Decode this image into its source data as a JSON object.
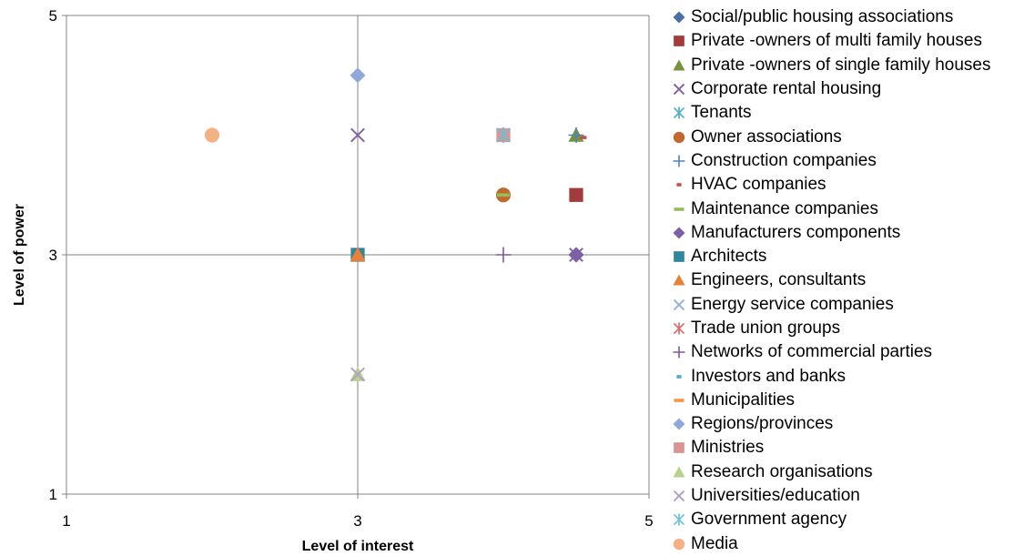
{
  "chart_data": {
    "type": "scatter",
    "xlabel": "Level of interest",
    "ylabel": "Level of power",
    "xlim": [
      1,
      5
    ],
    "ylim": [
      1,
      5
    ],
    "xticks": [
      "1",
      "3",
      "5"
    ],
    "yticks": [
      "1",
      "3",
      "5"
    ],
    "grid": true,
    "legend_position": "right",
    "series": [
      {
        "name": "Social/public housing associations",
        "marker": "diamond",
        "color": "#4a6fa5",
        "points": [
          [
            4.5,
            3
          ]
        ]
      },
      {
        "name": "Private -owners of multi family houses",
        "marker": "square",
        "color": "#a23b3b",
        "points": [
          [
            4.5,
            3.5
          ]
        ]
      },
      {
        "name": "Private -owners of single family houses",
        "marker": "triangle",
        "color": "#76923c",
        "points": [
          [
            4.5,
            4
          ]
        ]
      },
      {
        "name": "Corporate rental housing",
        "marker": "x",
        "color": "#8064a2",
        "points": [
          [
            3,
            4
          ],
          [
            4.5,
            3
          ]
        ]
      },
      {
        "name": "Tenants",
        "marker": "star",
        "color": "#4bacc6",
        "points": [
          [
            4,
            4
          ]
        ]
      },
      {
        "name": "Owner associations",
        "marker": "circle",
        "color": "#c0682d",
        "points": [
          [
            4,
            3.5
          ]
        ]
      },
      {
        "name": "Construction companies",
        "marker": "plus",
        "color": "#4f81bd",
        "points": [
          [
            4.5,
            4
          ]
        ]
      },
      {
        "name": "HVAC companies",
        "marker": "dash",
        "color": "#c0504d",
        "points": [
          [
            4.55,
            3.98
          ]
        ]
      },
      {
        "name": "Maintenance companies",
        "marker": "longdash",
        "color": "#9bbb59",
        "points": [
          [
            4,
            3.5
          ]
        ]
      },
      {
        "name": "Manufacturers components",
        "marker": "diamond",
        "color": "#7e5fa3",
        "points": [
          [
            4.5,
            3
          ]
        ]
      },
      {
        "name": "Architects",
        "marker": "square",
        "color": "#31869b",
        "points": [
          [
            3,
            3
          ]
        ]
      },
      {
        "name": "Engineers, consultants",
        "marker": "triangle",
        "color": "#e8803a",
        "points": [
          [
            3,
            3
          ]
        ]
      },
      {
        "name": "Energy service companies",
        "marker": "x",
        "color": "#95b3d7",
        "points": [
          [
            4,
            4
          ]
        ]
      },
      {
        "name": "Trade union groups",
        "marker": "star",
        "color": "#e06666",
        "points": [
          [
            4,
            4
          ]
        ]
      },
      {
        "name": "Networks of commercial parties",
        "marker": "plus",
        "color": "#7d5a9c",
        "points": [
          [
            4,
            3
          ]
        ]
      },
      {
        "name": "Investors and banks",
        "marker": "dash",
        "color": "#4bacc6",
        "points": []
      },
      {
        "name": "Municipalities",
        "marker": "longdash",
        "color": "#f79646",
        "points": []
      },
      {
        "name": "Regions/provinces",
        "marker": "diamond",
        "color": "#8fa8d8",
        "points": [
          [
            3,
            4.5
          ]
        ]
      },
      {
        "name": "Ministries",
        "marker": "square",
        "color": "#d99594",
        "points": [
          [
            4,
            4
          ]
        ]
      },
      {
        "name": "Research organisations",
        "marker": "triangle",
        "color": "#b7d08a",
        "points": [
          [
            3,
            2
          ]
        ]
      },
      {
        "name": "Universities/education",
        "marker": "x",
        "color": "#b2a1c7",
        "points": [
          [
            3,
            2
          ]
        ]
      },
      {
        "name": "Government agency",
        "marker": "star",
        "color": "#66c2d9",
        "points": [
          [
            4,
            4
          ]
        ]
      },
      {
        "name": "Media",
        "marker": "circle",
        "color": "#f4b183",
        "points": [
          [
            2,
            4
          ]
        ]
      }
    ]
  }
}
